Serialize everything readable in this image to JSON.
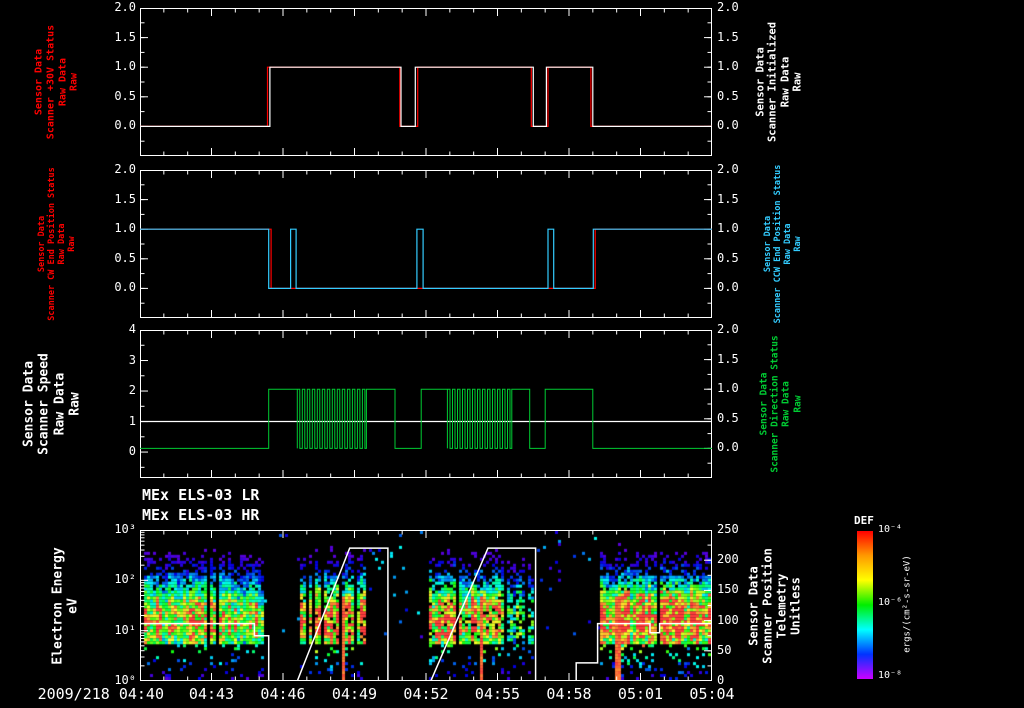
{
  "figure": {
    "bg": "#000000"
  },
  "time_axis": {
    "start_label": "2009/218 04:40",
    "tick_labels": [
      "04:40",
      "04:43",
      "04:46",
      "04:49",
      "04:52",
      "04:55",
      "04:58",
      "05:01",
      "05:04"
    ],
    "t_min_minutes": 0,
    "t_max_minutes": 24
  },
  "panels": [
    {
      "left_label": [
        "Sensor Data",
        "Scanner +30V Status",
        "Raw Data",
        "Raw"
      ],
      "left_label_color": "#ff0000",
      "right_label": [
        "Sensor Data",
        "Scanner Initialized",
        "Raw Data",
        "Raw"
      ],
      "right_label_color": "#ffffff",
      "left_tick_labels": [
        "2.0",
        "1.5",
        "1.0",
        "0.5",
        "0.0"
      ],
      "right_tick_labels": [
        "2.0",
        "1.5",
        "1.0",
        "0.5",
        "0.0"
      ]
    },
    {
      "left_label": [
        "Sensor Data",
        "Scanner CW End Position Status",
        "Raw Data",
        "Raw"
      ],
      "left_label_color": "#ff0000",
      "right_label": [
        "Sensor Data",
        "Scanner CCW End Position Status",
        "Raw Data",
        "Raw"
      ],
      "right_label_color": "#33ccff",
      "left_tick_labels": [
        "2.0",
        "1.5",
        "1.0",
        "0.5",
        "0.0"
      ],
      "right_tick_labels": [
        "2.0",
        "1.5",
        "1.0",
        "0.5",
        "0.0"
      ]
    },
    {
      "left_label": [
        "Sensor Data",
        "Scanner Speed",
        "Raw Data",
        "Raw"
      ],
      "left_label_color": "#ffffff",
      "right_label": [
        "Sensor Data",
        "Scanner Direction Status",
        "Raw Data",
        "Raw"
      ],
      "right_label_color": "#00cc33",
      "left_tick_labels": [
        "4",
        "3",
        "2",
        "1",
        "0"
      ],
      "right_tick_labels": [
        "2.0",
        "1.5",
        "1.0",
        "0.5",
        "0.0"
      ]
    },
    {
      "left_label": [
        "Electron Energy",
        "eV"
      ],
      "left_label_color": "#ffffff",
      "right_label": [
        "Sensor Data",
        "Scanner Position",
        "Telemetry",
        "Unitless"
      ],
      "right_label_color": "#ffffff",
      "left_tick_labels": [
        "10³",
        "10²",
        "10¹",
        "10⁰"
      ],
      "right_tick_labels": [
        "250",
        "200",
        "150",
        "100",
        "50",
        "0"
      ]
    }
  ],
  "spectrogram": {
    "title_lr": "MEx ELS-03 LR",
    "title_hr": "MEx ELS-03 HR",
    "colorbar_label": "DEF",
    "colorbar_units": "ergs/(cm²-s-sr-eV)",
    "colorbar_tick_labels": [
      "10⁻⁴",
      "10⁻⁶",
      "10⁻⁸"
    ],
    "colorbar_colors": [
      "#ff0000",
      "#ff9900",
      "#ffff00",
      "#00ee00",
      "#00ffff",
      "#0033ff",
      "#cc00ff"
    ]
  },
  "chart_data": [
    {
      "type": "line",
      "panel": "scanner-30v-status-and-initialized",
      "x_axis": "minutes after 2009/218 04:40 UT",
      "xlim": [
        0,
        24
      ],
      "ylim": [
        0,
        2
      ],
      "series": [
        {
          "name": "Scanner +30V Status (Raw)",
          "color": "#ff0000",
          "step_points": [
            [
              0,
              0
            ],
            [
              5.35,
              0
            ],
            [
              5.35,
              1
            ],
            [
              10.9,
              1
            ],
            [
              10.9,
              0
            ],
            [
              11.65,
              0
            ],
            [
              11.65,
              1
            ],
            [
              16.42,
              1
            ],
            [
              16.42,
              0
            ],
            [
              17.12,
              0
            ],
            [
              17.12,
              1
            ],
            [
              18.92,
              1
            ],
            [
              18.92,
              0
            ],
            [
              24,
              0
            ]
          ]
        },
        {
          "name": "Scanner Initialized (Raw)",
          "color": "#ffffff",
          "step_points": [
            [
              0,
              0
            ],
            [
              5.45,
              0
            ],
            [
              5.45,
              1
            ],
            [
              10.95,
              1
            ],
            [
              10.95,
              0
            ],
            [
              11.55,
              0
            ],
            [
              11.55,
              1
            ],
            [
              16.5,
              1
            ],
            [
              16.5,
              0
            ],
            [
              17.05,
              0
            ],
            [
              17.05,
              1
            ],
            [
              19.0,
              1
            ],
            [
              19.0,
              0
            ],
            [
              24,
              0
            ]
          ]
        }
      ]
    },
    {
      "type": "line",
      "panel": "scanner-end-position-status",
      "xlim": [
        0,
        24
      ],
      "ylim": [
        0,
        2
      ],
      "series": [
        {
          "name": "Scanner CW End Position Status (Raw)",
          "color": "#ff0000",
          "step_points": [
            [
              0,
              1
            ],
            [
              5.5,
              1
            ],
            [
              5.5,
              0
            ],
            [
              19.1,
              0
            ],
            [
              19.1,
              1
            ],
            [
              24,
              1
            ]
          ]
        },
        {
          "name": "Scanner CCW End Position Status (Raw)",
          "color": "#33ccff",
          "step_points": [
            [
              0,
              1
            ],
            [
              5.4,
              1
            ],
            [
              5.4,
              0
            ],
            [
              6.32,
              0
            ],
            [
              6.32,
              1
            ],
            [
              6.55,
              1
            ],
            [
              6.55,
              0
            ],
            [
              11.62,
              0
            ],
            [
              11.62,
              1
            ],
            [
              11.88,
              1
            ],
            [
              11.88,
              0
            ],
            [
              17.12,
              0
            ],
            [
              17.12,
              1
            ],
            [
              17.36,
              1
            ],
            [
              17.36,
              0
            ],
            [
              19.02,
              0
            ],
            [
              19.02,
              1
            ],
            [
              24,
              1
            ]
          ]
        }
      ]
    },
    {
      "type": "line",
      "panel": "scanner-speed-and-direction",
      "xlim": [
        0,
        24
      ],
      "ylim_left": [
        0,
        4
      ],
      "ylim_right": [
        0,
        2
      ],
      "series": [
        {
          "name": "Scanner Speed (Raw)",
          "color": "#ffffff",
          "axis": "left",
          "step_points": [
            [
              0,
              1
            ],
            [
              24,
              1
            ]
          ]
        },
        {
          "name": "Scanner Direction Status (Raw)",
          "color": "#00cc33",
          "axis": "right",
          "high_value": 1,
          "solid_high_intervals": [
            [
              5.4,
              6.6
            ],
            [
              9.5,
              10.7
            ],
            [
              11.8,
              12.9
            ],
            [
              15.6,
              16.35
            ],
            [
              17.0,
              19.0
            ]
          ],
          "oscillation_intervals": [
            {
              "t0": 6.6,
              "t1": 9.5,
              "period": 0.21
            },
            {
              "t0": 12.9,
              "t1": 15.6,
              "period": 0.21
            }
          ]
        }
      ]
    },
    {
      "type": "heatmap",
      "panel": "els-electron-spectrogram",
      "xlim": [
        0,
        24
      ],
      "y_log_range_eV": [
        1,
        1000
      ],
      "flux_log_range": [
        1e-08,
        0.0001
      ],
      "flux_peak_log_energy": 1.2,
      "bands": [
        {
          "t0": 0.15,
          "t1": 5.2,
          "intensity": 0.72,
          "density": 0.95
        },
        {
          "t0": 6.7,
          "t1": 9.6,
          "intensity": 0.88,
          "density": 0.7,
          "red_streaks": [
            8.55
          ]
        },
        {
          "t0": 12.1,
          "t1": 15.35,
          "intensity": 0.88,
          "density": 0.7,
          "red_streaks": [
            14.35
          ]
        },
        {
          "t0": 15.35,
          "t1": 16.7,
          "intensity": 0.5,
          "density": 0.3
        },
        {
          "t0": 19.3,
          "t1": 23.95,
          "intensity": 0.97,
          "density": 0.9,
          "red_streaks": [
            20.1
          ]
        }
      ],
      "overlay": {
        "name": "Scanner Position Telemetry (Unitless)",
        "color": "#ffffff",
        "axis": "right",
        "ylim": [
          0,
          250
        ],
        "points": [
          [
            0,
            95
          ],
          [
            4.8,
            95
          ],
          [
            4.8,
            75
          ],
          [
            5.4,
            75
          ],
          [
            5.4,
            0
          ],
          [
            6.6,
            0
          ],
          [
            8.8,
            220
          ],
          [
            10.4,
            220
          ],
          [
            10.4,
            0
          ],
          [
            12.2,
            0
          ],
          [
            14.6,
            220
          ],
          [
            16.6,
            220
          ],
          [
            16.6,
            0
          ],
          [
            18.3,
            0
          ],
          [
            18.3,
            30
          ],
          [
            19.2,
            30
          ],
          [
            19.2,
            95
          ],
          [
            21.4,
            95
          ],
          [
            21.4,
            80
          ],
          [
            21.8,
            80
          ],
          [
            21.8,
            95
          ],
          [
            24,
            95
          ]
        ]
      }
    }
  ]
}
